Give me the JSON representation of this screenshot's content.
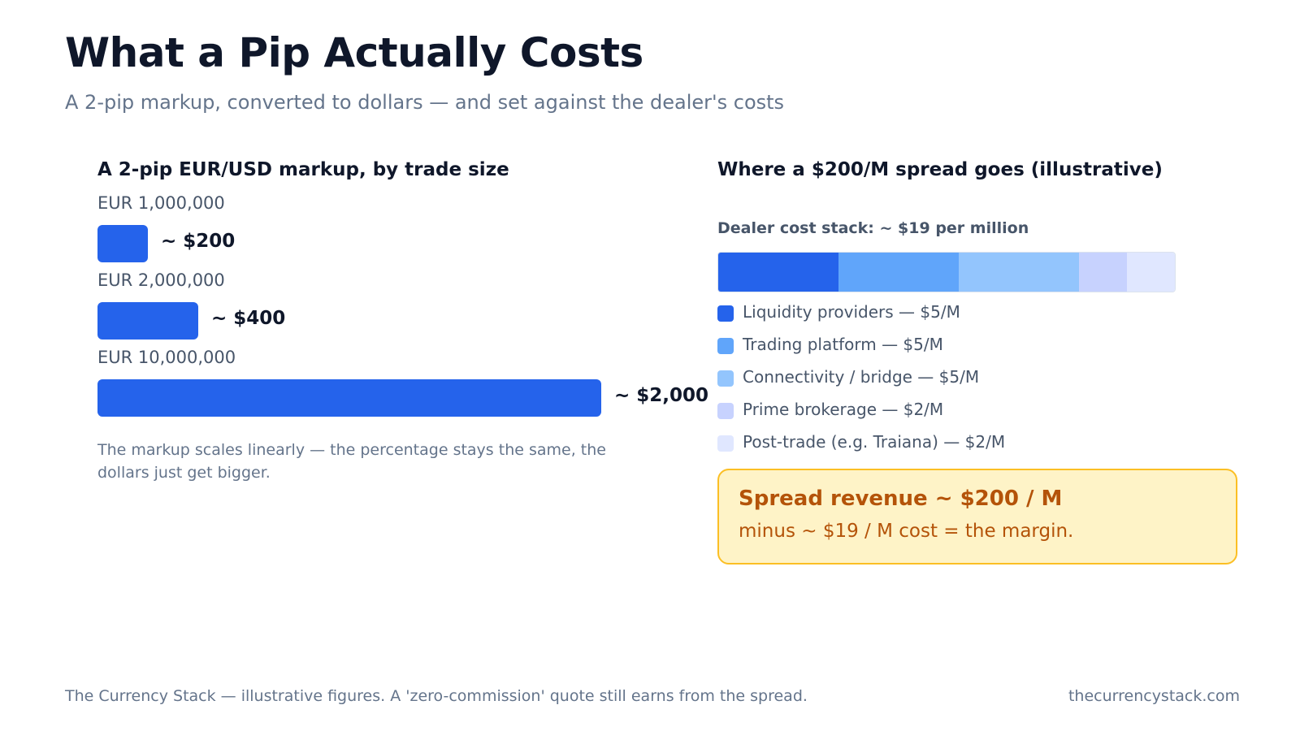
{
  "title": "What a Pip Actually Costs",
  "subtitle": "A 2-pip markup, converted to dollars — and set against the dealer's costs",
  "left_panel": {
    "title": "A 2-pip EUR/USD markup, by trade size",
    "note": "The markup scales linearly — the percentage stays the same, the dollars just get bigger."
  },
  "right_panel": {
    "title": "Where a $200/M spread goes (illustrative)",
    "stack_label": "Dealer cost stack: ~ $19 per million",
    "callout": {
      "headline": "Spread revenue ~ $200 / M",
      "subline": "minus ~ $19 / M cost = the margin."
    }
  },
  "footer": {
    "left": "The Currency Stack — illustrative figures. A 'zero-commission' quote still earns from the spread.",
    "right": "thecurrencystack.com"
  },
  "chart_data": [
    {
      "type": "bar",
      "orientation": "horizontal",
      "title": "A 2-pip EUR/USD markup, by trade size",
      "categories": [
        "EUR 1,000,000",
        "EUR 2,000,000",
        "EUR 10,000,000"
      ],
      "values": [
        200,
        400,
        2000
      ],
      "value_labels": [
        "~ $200",
        "~ $400",
        "~ $2,000"
      ],
      "unit": "USD",
      "color": "#2563eb"
    },
    {
      "type": "bar",
      "orientation": "horizontal",
      "stacked": true,
      "title": "Where a $200/M spread goes (illustrative)",
      "total_label": "Dealer cost stack: ~ $19 per million",
      "unit": "USD per million",
      "series": [
        {
          "name": "Liquidity providers — $5/M",
          "value": 5,
          "color": "#2563eb"
        },
        {
          "name": "Trading platform — $5/M",
          "value": 5,
          "color": "#60a5fa"
        },
        {
          "name": "Connectivity / bridge — $5/M",
          "value": 5,
          "color": "#93c5fd"
        },
        {
          "name": "Prime brokerage — $2/M",
          "value": 2,
          "color": "#c7d2fe"
        },
        {
          "name": "Post-trade (e.g. Traiana) — $2/M",
          "value": 2,
          "color": "#e0e7ff"
        }
      ],
      "legend": "below"
    }
  ]
}
